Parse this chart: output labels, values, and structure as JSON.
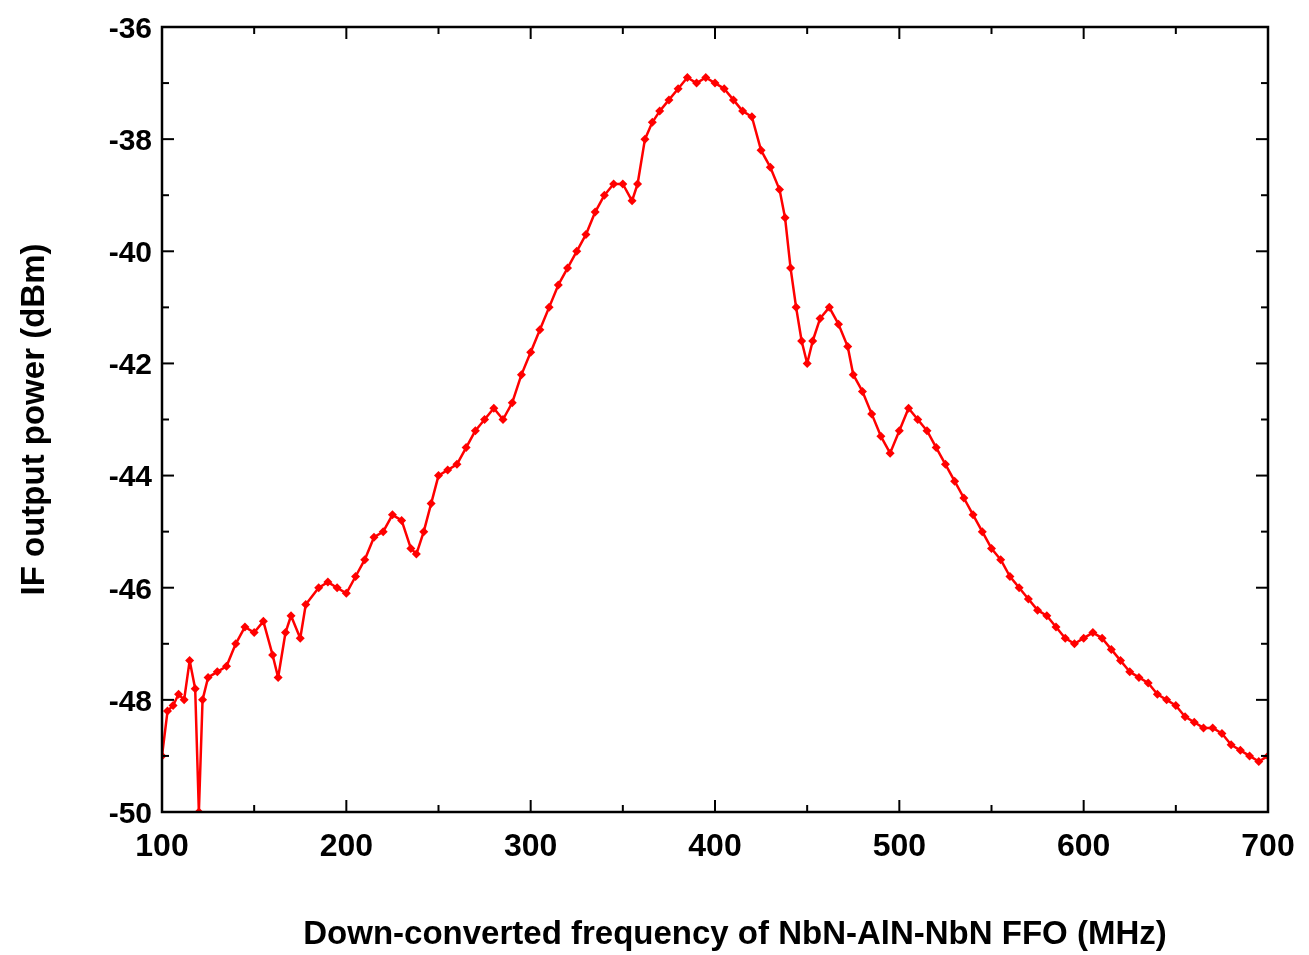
{
  "chart_data": {
    "type": "line",
    "xlabel": "Down-converted frequency of NbN-AlN-NbN FFO (MHz)",
    "ylabel": "IF output power (dBm)",
    "x": [
      100,
      103,
      106,
      109,
      112,
      115,
      118,
      120,
      122,
      125,
      130,
      135,
      140,
      145,
      150,
      155,
      160,
      163,
      167,
      170,
      175,
      178,
      185,
      190,
      195,
      200,
      205,
      210,
      215,
      220,
      225,
      230,
      235,
      238,
      242,
      246,
      250,
      255,
      260,
      265,
      270,
      275,
      280,
      285,
      290,
      295,
      300,
      305,
      310,
      315,
      320,
      325,
      330,
      335,
      340,
      345,
      350,
      355,
      358,
      362,
      366,
      370,
      375,
      380,
      385,
      390,
      395,
      400,
      405,
      410,
      415,
      420,
      425,
      430,
      435,
      438,
      441,
      444,
      447,
      450,
      453,
      457,
      462,
      467,
      472,
      475,
      480,
      485,
      490,
      495,
      500,
      505,
      510,
      515,
      520,
      525,
      530,
      535,
      540,
      545,
      550,
      555,
      560,
      565,
      570,
      575,
      580,
      585,
      590,
      595,
      600,
      605,
      610,
      615,
      620,
      625,
      630,
      635,
      640,
      645,
      650,
      655,
      660,
      665,
      670,
      675,
      680,
      685,
      690,
      695,
      700
    ],
    "series": [
      {
        "color": "#ff0000",
        "values": [
          -49.0,
          -48.2,
          -48.1,
          -47.9,
          -48.0,
          -47.3,
          -47.8,
          -50.0,
          -48.0,
          -47.6,
          -47.5,
          -47.4,
          -47.0,
          -46.7,
          -46.8,
          -46.6,
          -47.2,
          -47.6,
          -46.8,
          -46.5,
          -46.9,
          -46.3,
          -46.0,
          -45.9,
          -46.0,
          -46.1,
          -45.8,
          -45.5,
          -45.1,
          -45.0,
          -44.7,
          -44.8,
          -45.3,
          -45.4,
          -45.0,
          -44.5,
          -44.0,
          -43.9,
          -43.8,
          -43.5,
          -43.2,
          -43.0,
          -42.8,
          -43.0,
          -42.7,
          -42.2,
          -41.8,
          -41.4,
          -41.0,
          -40.6,
          -40.3,
          -40.0,
          -39.7,
          -39.3,
          -39.0,
          -38.8,
          -38.8,
          -39.1,
          -38.8,
          -38.0,
          -37.7,
          -37.5,
          -37.3,
          -37.1,
          -36.9,
          -37.0,
          -36.9,
          -37.0,
          -37.1,
          -37.3,
          -37.5,
          -37.6,
          -38.2,
          -38.5,
          -38.9,
          -39.4,
          -40.3,
          -41.0,
          -41.6,
          -42.0,
          -41.6,
          -41.2,
          -41.0,
          -41.3,
          -41.7,
          -42.2,
          -42.5,
          -42.9,
          -43.3,
          -43.6,
          -43.2,
          -42.8,
          -43.0,
          -43.2,
          -43.5,
          -43.8,
          -44.1,
          -44.4,
          -44.7,
          -45.0,
          -45.3,
          -45.5,
          -45.8,
          -46.0,
          -46.2,
          -46.4,
          -46.5,
          -46.7,
          -46.9,
          -47.0,
          -46.9,
          -46.8,
          -46.9,
          -47.1,
          -47.3,
          -47.5,
          -47.6,
          -47.7,
          -47.9,
          -48.0,
          -48.1,
          -48.3,
          -48.4,
          -48.5,
          -48.5,
          -48.6,
          -48.8,
          -48.9,
          -49.0,
          -49.1,
          -49.0
        ]
      }
    ],
    "xlim": [
      100,
      700
    ],
    "xticks": [
      100,
      {
        "value": 150,
        "label": null
      },
      200,
      {
        "value": 250,
        "label": null
      },
      300,
      {
        "value": 350,
        "label": null
      },
      400,
      {
        "value": 450,
        "label": null
      },
      500,
      {
        "value": 550,
        "label": null
      },
      600,
      {
        "value": 650,
        "label": null
      },
      700
    ],
    "ylim": [
      -50,
      -36
    ],
    "yticks": [
      -50,
      {
        "value": -49,
        "label": null
      },
      -48,
      {
        "value": -47,
        "label": null
      },
      -46,
      {
        "value": -45,
        "label": null
      },
      -44,
      {
        "value": -43,
        "label": null
      },
      -42,
      {
        "value": -41,
        "label": null
      },
      -40,
      {
        "value": -39,
        "label": null
      },
      -38,
      {
        "value": -37,
        "label": null
      },
      -36
    ],
    "marker": "diamond",
    "line_style": "solid"
  }
}
